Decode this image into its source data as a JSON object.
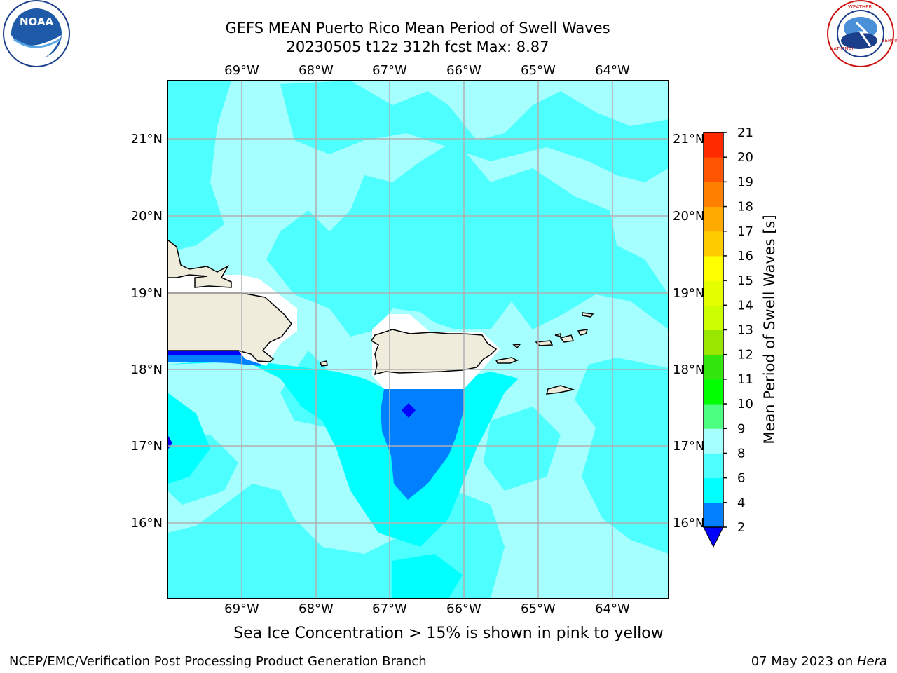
{
  "header": {
    "title_line1": "GEFS MEAN Puerto Rico Mean Period of Swell Waves",
    "title_line2": "20230505 t12z 312h fcst   Max: 8.87"
  },
  "logos": {
    "left": {
      "name": "NOAA",
      "text": "NOAA",
      "ring_text": "NATIONAL OCEANIC AND ATMOSPHERIC ADMINISTRATION · U.S. DEPARTMENT OF COMMERCE"
    },
    "right": {
      "name": "National Weather Service",
      "ring_text": "NATIONAL WEATHER SERVICE"
    }
  },
  "map": {
    "lon_labels": [
      "69°W",
      "68°W",
      "67°W",
      "66°W",
      "65°W",
      "64°W"
    ],
    "lat_labels": [
      "21°N",
      "20°N",
      "19°N",
      "18°N",
      "17°N",
      "16°N"
    ],
    "colors": {
      "ocean_main": "#00ffff",
      "ocean_mid": "#4dffff",
      "ocean_light": "#a6ffff",
      "ocean_dark": "#0080ff",
      "ocean_darkest": "#0000ff",
      "land": "#efecdc",
      "grid": "#b0b0b0"
    }
  },
  "colorbar": {
    "label": "Mean Period of Swell Waves [s]",
    "ticks": [
      "2",
      "4",
      "6",
      "8",
      "9",
      "10",
      "11",
      "12",
      "13",
      "14",
      "15",
      "16",
      "17",
      "18",
      "19",
      "20",
      "21"
    ],
    "colors": [
      "#0080ff",
      "#00ffff",
      "#4dffff",
      "#a6ffff",
      "#4dff80",
      "#00ff00",
      "#33e60d",
      "#99e600",
      "#ccff00",
      "#e6ff00",
      "#ffff00",
      "#ffcc00",
      "#ffaa00",
      "#ff8000",
      "#ff5500",
      "#ff2a00",
      "#ff0000"
    ],
    "under_color": "#0000ff"
  },
  "caption": "Sea Ice Concentration > 15% is shown in pink to yellow",
  "footer": {
    "left": "NCEP/EMC/Verification Post Processing Product Generation Branch",
    "date": "07 May 2023 on ",
    "host": "Hera"
  }
}
